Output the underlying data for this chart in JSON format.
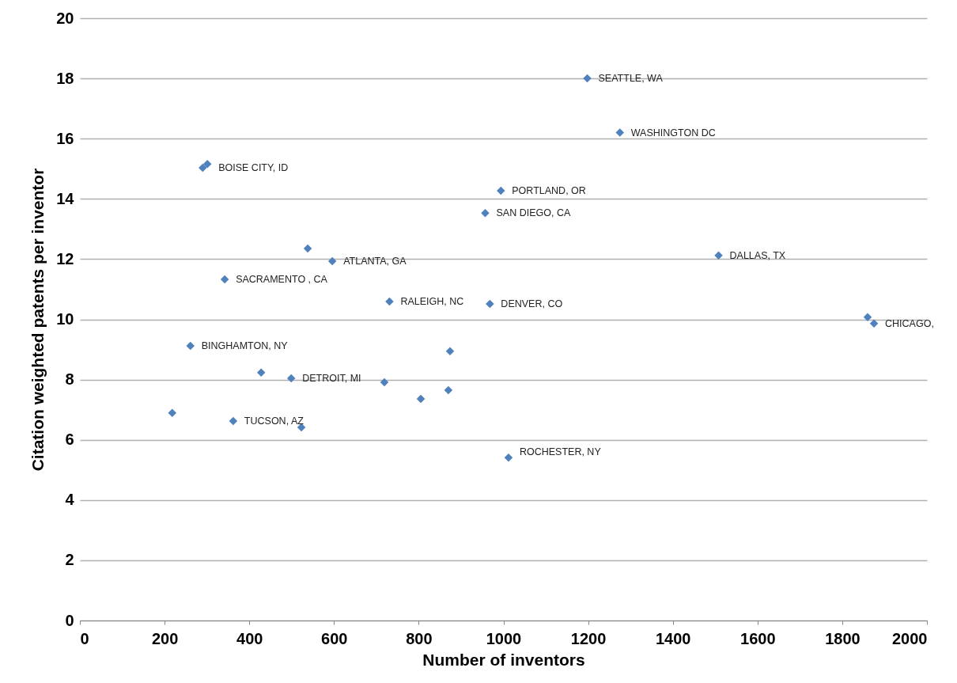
{
  "chart_data": {
    "type": "scatter",
    "xlabel": "Number of inventors",
    "ylabel": "Citation weighted patents per inventor",
    "x": [
      1198,
      1275,
      290,
      301,
      994,
      957,
      538,
      596,
      1508,
      342,
      731,
      968,
      1860,
      1875,
      261,
      874,
      428,
      499,
      719,
      870,
      805,
      218,
      362,
      523,
      1012
    ],
    "series": [
      {
        "color": "#4f81bd",
        "values": [
          18.0,
          16.2,
          15.03,
          15.16,
          14.27,
          13.53,
          12.35,
          11.93,
          12.12,
          11.33,
          10.59,
          10.51,
          10.07,
          9.86,
          9.12,
          8.94,
          8.23,
          8.04,
          7.91,
          7.65,
          7.36,
          6.89,
          6.62,
          6.41,
          5.41
        ]
      }
    ],
    "xlim": [
      0,
      2000
    ],
    "xticks": [
      0,
      200,
      400,
      600,
      800,
      1000,
      1200,
      1400,
      1600,
      1800,
      2000
    ],
    "ylim": [
      0,
      20
    ],
    "yticks": [
      0,
      2,
      4,
      6,
      8,
      10,
      12,
      14,
      16,
      18,
      20
    ],
    "grid": "y",
    "marker": "diamond",
    "annotations": [
      {
        "text": "SEATTLE, WA",
        "x": 1198,
        "y": 18.0
      },
      {
        "text": "WASHINGTON  DC",
        "x": 1275,
        "y": 16.2
      },
      {
        "text": "BOISE CITY, ID",
        "x": 301,
        "y": 15.03
      },
      {
        "text": "PORTLAND, OR",
        "x": 994,
        "y": 14.27
      },
      {
        "text": "SAN DIEGO, CA",
        "x": 957,
        "y": 13.53
      },
      {
        "text": "ATLANTA, GA",
        "x": 596,
        "y": 11.93
      },
      {
        "text": "DALLAS, TX",
        "x": 1508,
        "y": 12.12
      },
      {
        "text": "SACRAMENTO , CA",
        "x": 342,
        "y": 11.33
      },
      {
        "text": "RALEIGH, NC",
        "x": 731,
        "y": 10.59
      },
      {
        "text": "DENVER, CO",
        "x": 968,
        "y": 10.51
      },
      {
        "text": "CHICAGO,",
        "x": 1875,
        "y": 9.86
      },
      {
        "text": "BINGHAMTON, NY",
        "x": 261,
        "y": 9.12
      },
      {
        "text": "DETROIT, MI",
        "x": 499,
        "y": 8.04
      },
      {
        "text": "TUCSON, AZ",
        "x": 362,
        "y": 6.62
      },
      {
        "text": "ROCHESTER, NY",
        "x": 1012,
        "y": 5.6
      }
    ]
  }
}
